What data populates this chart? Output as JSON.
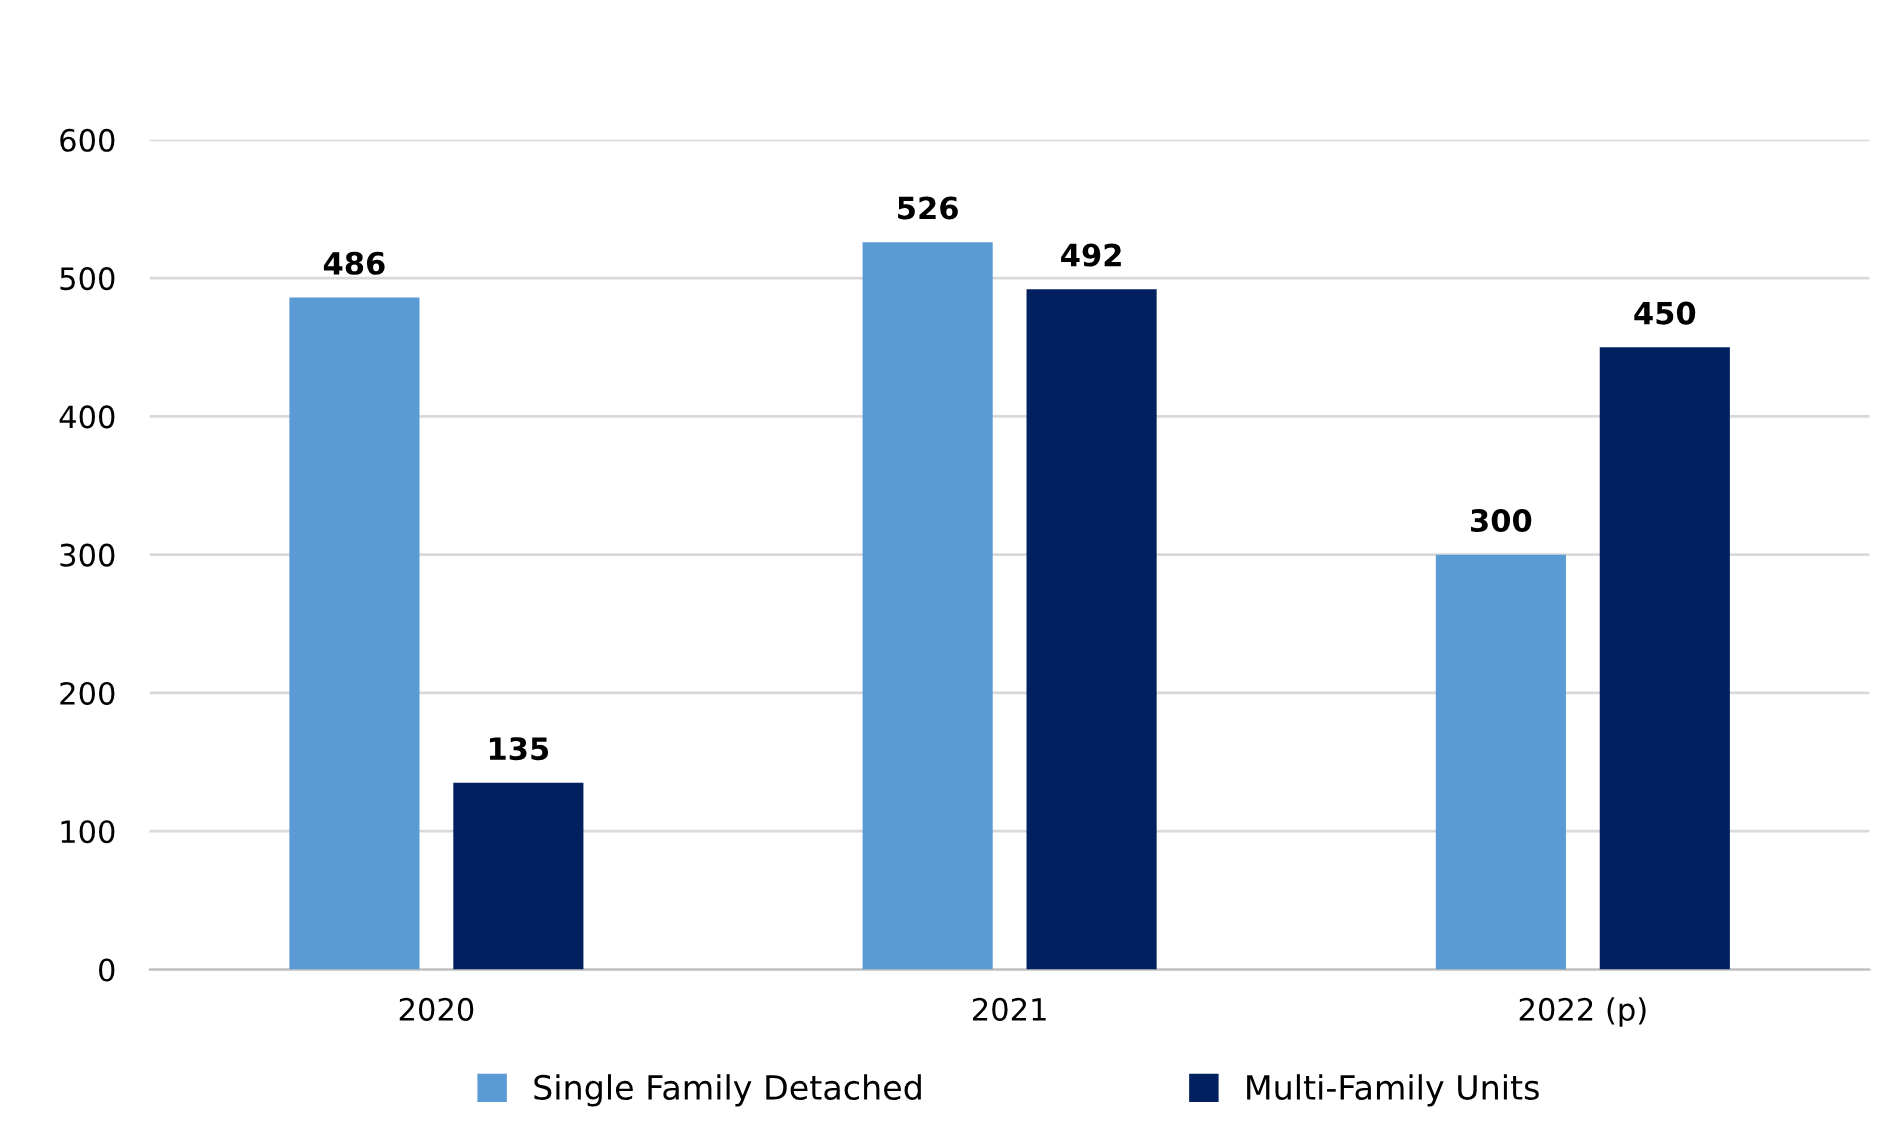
{
  "chart_data": {
    "type": "bar",
    "categories": [
      "2020",
      "2021",
      "2022 (p)"
    ],
    "series": [
      {
        "name": "Single Family Detached",
        "color": "#5b9bd5",
        "values": [
          486,
          526,
          300
        ]
      },
      {
        "name": "Multi-Family Units",
        "color": "#002060",
        "values": [
          135,
          492,
          450
        ]
      }
    ],
    "ylim": [
      0,
      600
    ],
    "yticks": [
      0,
      100,
      200,
      300,
      400,
      500,
      600
    ],
    "grid": "y",
    "legend": "bottom",
    "data_labels": true
  }
}
